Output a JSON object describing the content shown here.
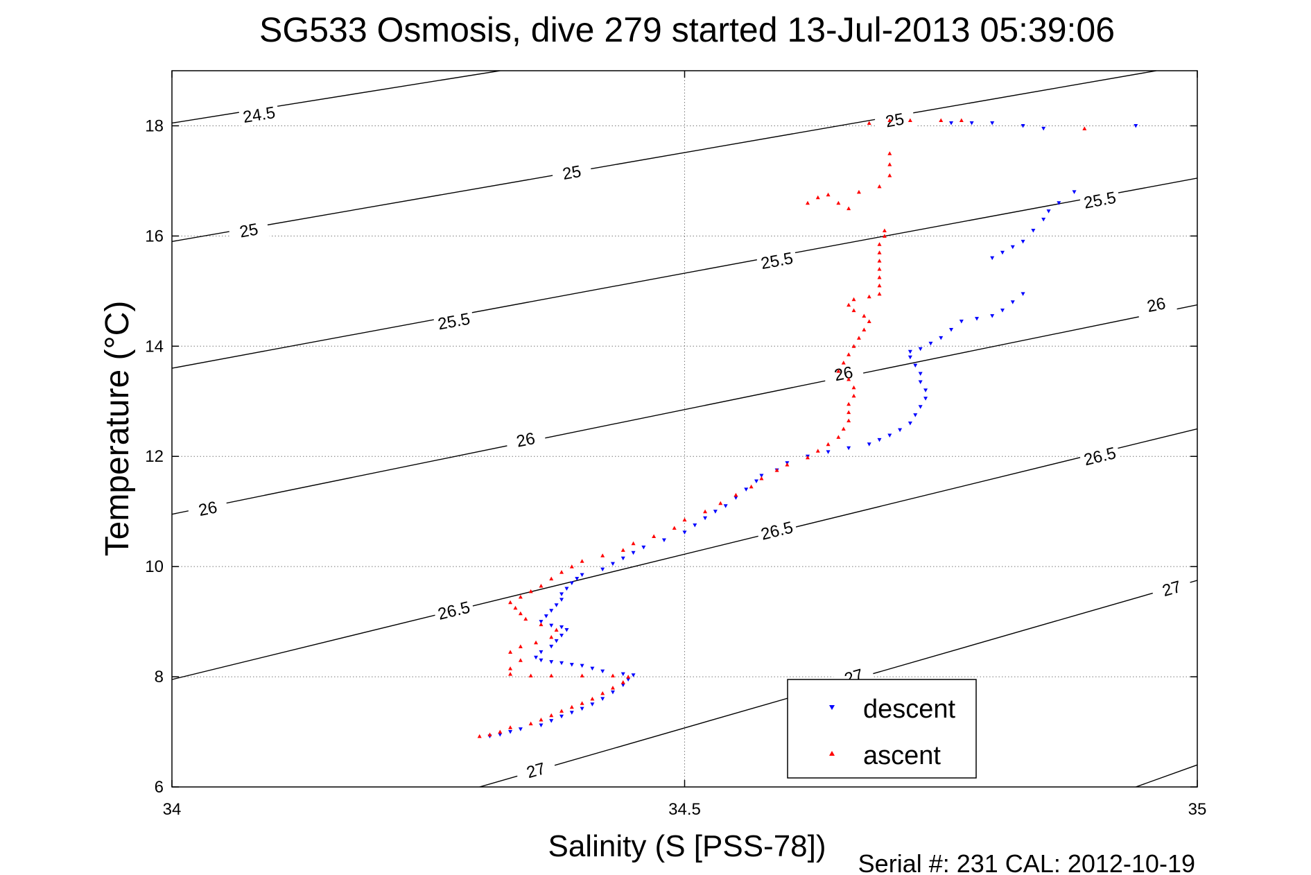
{
  "chart_data": {
    "type": "scatter",
    "title": "SG533 Osmosis, dive 279 started 13-Jul-2013 05:39:06",
    "xlabel": "Salinity (S [PSS-78])",
    "ylabel": "Temperature (°C)",
    "footer": "Serial #: 231  CAL: 2012-10-19",
    "xlim": [
      34,
      35
    ],
    "ylim": [
      6,
      19
    ],
    "xticks": [
      34,
      34.5,
      35
    ],
    "xtick_labels": [
      "34",
      "34.5",
      "35"
    ],
    "yticks": [
      6,
      8,
      10,
      12,
      14,
      16,
      18
    ],
    "ytick_labels": [
      "6",
      "8",
      "10",
      "12",
      "14",
      "16",
      "18"
    ],
    "grid": true,
    "legend": {
      "placement": "bottom-right",
      "entries": [
        "descent",
        "ascent"
      ]
    },
    "contours": [
      {
        "label": "24.5",
        "x0": 34,
        "y0": 18.05,
        "x1": 34.32,
        "y1": 19.0,
        "labels_at": [
          [
            34.085,
            18.2
          ]
        ]
      },
      {
        "label": "25",
        "x0": 34,
        "y0": 15.9,
        "x1": 34.96,
        "y1": 19.0,
        "labels_at": [
          [
            34.075,
            16.1
          ],
          [
            34.39,
            17.15
          ],
          [
            34.705,
            18.1
          ]
        ]
      },
      {
        "label": "25.5",
        "x0": 34,
        "y0": 13.6,
        "x1": 35.0,
        "y1": 17.05,
        "labels_at": [
          [
            34.275,
            14.45
          ],
          [
            34.59,
            15.55
          ],
          [
            34.905,
            16.65
          ]
        ]
      },
      {
        "label": "26",
        "x0": 34,
        "y0": 10.95,
        "x1": 35.0,
        "y1": 14.75,
        "labels_at": [
          [
            34.035,
            11.05
          ],
          [
            34.345,
            12.3
          ],
          [
            34.655,
            13.5
          ],
          [
            34.96,
            14.75
          ]
        ]
      },
      {
        "label": "26.5",
        "x0": 34,
        "y0": 7.95,
        "x1": 35.0,
        "y1": 12.5,
        "labels_at": [
          [
            34.275,
            9.2
          ],
          [
            34.59,
            10.65
          ],
          [
            34.905,
            12.0
          ]
        ]
      },
      {
        "label": "27",
        "x0": 34.3,
        "y0": 6.0,
        "x1": 35.0,
        "y1": 9.75,
        "labels_at": [
          [
            34.355,
            6.3
          ],
          [
            34.665,
            8.0
          ],
          [
            34.975,
            9.6
          ]
        ]
      },
      {
        "label": "",
        "x0": 34.94,
        "y0": 6.0,
        "x1": 35.0,
        "y1": 6.4,
        "labels_at": []
      }
    ],
    "series": [
      {
        "name": "descent",
        "color": "#0000ff",
        "marker": "triangle-down",
        "points": [
          [
            34.31,
            6.92
          ],
          [
            34.32,
            6.95
          ],
          [
            34.33,
            7.0
          ],
          [
            34.34,
            7.05
          ],
          [
            34.36,
            7.12
          ],
          [
            34.37,
            7.2
          ],
          [
            34.38,
            7.28
          ],
          [
            34.39,
            7.35
          ],
          [
            34.4,
            7.42
          ],
          [
            34.41,
            7.5
          ],
          [
            34.42,
            7.6
          ],
          [
            34.43,
            7.72
          ],
          [
            34.44,
            7.85
          ],
          [
            34.445,
            7.95
          ],
          [
            34.45,
            8.03
          ],
          [
            34.44,
            8.05
          ],
          [
            34.42,
            8.1
          ],
          [
            34.41,
            8.15
          ],
          [
            34.4,
            8.2
          ],
          [
            34.39,
            8.22
          ],
          [
            34.38,
            8.25
          ],
          [
            34.37,
            8.27
          ],
          [
            34.36,
            8.3
          ],
          [
            34.355,
            8.35
          ],
          [
            34.36,
            8.45
          ],
          [
            34.37,
            8.55
          ],
          [
            34.375,
            8.65
          ],
          [
            34.38,
            8.75
          ],
          [
            34.385,
            8.85
          ],
          [
            34.38,
            8.9
          ],
          [
            34.37,
            8.93
          ],
          [
            34.36,
            9.0
          ],
          [
            34.365,
            9.1
          ],
          [
            34.37,
            9.2
          ],
          [
            34.375,
            9.3
          ],
          [
            34.38,
            9.4
          ],
          [
            34.38,
            9.5
          ],
          [
            34.385,
            9.6
          ],
          [
            34.39,
            9.7
          ],
          [
            34.395,
            9.78
          ],
          [
            34.4,
            9.85
          ],
          [
            34.42,
            9.95
          ],
          [
            34.43,
            10.05
          ],
          [
            34.44,
            10.15
          ],
          [
            34.45,
            10.25
          ],
          [
            34.46,
            10.35
          ],
          [
            34.48,
            10.48
          ],
          [
            34.5,
            10.62
          ],
          [
            34.51,
            10.75
          ],
          [
            34.52,
            10.88
          ],
          [
            34.53,
            11.0
          ],
          [
            34.54,
            11.1
          ],
          [
            34.55,
            11.25
          ],
          [
            34.56,
            11.4
          ],
          [
            34.57,
            11.55
          ],
          [
            34.575,
            11.65
          ],
          [
            34.59,
            11.75
          ],
          [
            34.6,
            11.88
          ],
          [
            34.62,
            12.0
          ],
          [
            34.64,
            12.08
          ],
          [
            34.66,
            12.15
          ],
          [
            34.68,
            12.22
          ],
          [
            34.69,
            12.3
          ],
          [
            34.7,
            12.38
          ],
          [
            34.71,
            12.48
          ],
          [
            34.72,
            12.6
          ],
          [
            34.725,
            12.75
          ],
          [
            34.73,
            12.9
          ],
          [
            34.735,
            13.05
          ],
          [
            34.735,
            13.2
          ],
          [
            34.73,
            13.35
          ],
          [
            34.73,
            13.5
          ],
          [
            34.725,
            13.65
          ],
          [
            34.72,
            13.8
          ],
          [
            34.72,
            13.9
          ],
          [
            34.73,
            13.95
          ],
          [
            34.74,
            14.05
          ],
          [
            34.75,
            14.15
          ],
          [
            34.76,
            14.3
          ],
          [
            34.77,
            14.45
          ],
          [
            34.785,
            14.5
          ],
          [
            34.8,
            14.55
          ],
          [
            34.81,
            14.65
          ],
          [
            34.82,
            14.8
          ],
          [
            34.83,
            14.95
          ],
          [
            34.8,
            15.6
          ],
          [
            34.81,
            15.7
          ],
          [
            34.82,
            15.8
          ],
          [
            34.83,
            15.9
          ],
          [
            34.84,
            16.1
          ],
          [
            34.85,
            16.3
          ],
          [
            34.855,
            16.45
          ],
          [
            34.865,
            16.6
          ],
          [
            34.88,
            16.8
          ],
          [
            34.85,
            17.95
          ],
          [
            34.83,
            18.0
          ],
          [
            34.8,
            18.05
          ],
          [
            34.78,
            18.05
          ],
          [
            34.76,
            18.05
          ],
          [
            34.94,
            18.0
          ]
        ]
      },
      {
        "name": "ascent",
        "color": "#ff0000",
        "marker": "triangle-up",
        "points": [
          [
            34.3,
            6.92
          ],
          [
            34.31,
            6.95
          ],
          [
            34.32,
            7.0
          ],
          [
            34.33,
            7.08
          ],
          [
            34.35,
            7.15
          ],
          [
            34.36,
            7.22
          ],
          [
            34.37,
            7.3
          ],
          [
            34.38,
            7.38
          ],
          [
            34.39,
            7.45
          ],
          [
            34.4,
            7.52
          ],
          [
            34.41,
            7.6
          ],
          [
            34.42,
            7.7
          ],
          [
            34.43,
            7.8
          ],
          [
            34.44,
            7.9
          ],
          [
            34.445,
            8.0
          ],
          [
            34.43,
            8.02
          ],
          [
            34.4,
            8.02
          ],
          [
            34.37,
            8.02
          ],
          [
            34.35,
            8.02
          ],
          [
            34.33,
            8.05
          ],
          [
            34.33,
            8.15
          ],
          [
            34.34,
            8.3
          ],
          [
            34.33,
            8.45
          ],
          [
            34.34,
            8.55
          ],
          [
            34.355,
            8.62
          ],
          [
            34.37,
            8.72
          ],
          [
            34.375,
            8.85
          ],
          [
            34.36,
            8.95
          ],
          [
            34.345,
            9.05
          ],
          [
            34.34,
            9.15
          ],
          [
            34.335,
            9.25
          ],
          [
            34.33,
            9.35
          ],
          [
            34.34,
            9.45
          ],
          [
            34.35,
            9.55
          ],
          [
            34.36,
            9.65
          ],
          [
            34.37,
            9.78
          ],
          [
            34.38,
            9.9
          ],
          [
            34.39,
            10.0
          ],
          [
            34.4,
            10.1
          ],
          [
            34.42,
            10.2
          ],
          [
            34.44,
            10.3
          ],
          [
            34.45,
            10.42
          ],
          [
            34.47,
            10.55
          ],
          [
            34.49,
            10.7
          ],
          [
            34.5,
            10.85
          ],
          [
            34.52,
            11.0
          ],
          [
            34.535,
            11.15
          ],
          [
            34.55,
            11.3
          ],
          [
            34.565,
            11.45
          ],
          [
            34.575,
            11.6
          ],
          [
            34.59,
            11.75
          ],
          [
            34.6,
            11.85
          ],
          [
            34.62,
            11.98
          ],
          [
            34.63,
            12.1
          ],
          [
            34.64,
            12.22
          ],
          [
            34.65,
            12.35
          ],
          [
            34.655,
            12.5
          ],
          [
            34.66,
            12.65
          ],
          [
            34.66,
            12.8
          ],
          [
            34.66,
            12.95
          ],
          [
            34.665,
            13.1
          ],
          [
            34.665,
            13.25
          ],
          [
            34.66,
            13.4
          ],
          [
            34.65,
            13.55
          ],
          [
            34.655,
            13.7
          ],
          [
            34.66,
            13.85
          ],
          [
            34.665,
            14.0
          ],
          [
            34.67,
            14.15
          ],
          [
            34.675,
            14.3
          ],
          [
            34.68,
            14.45
          ],
          [
            34.675,
            14.55
          ],
          [
            34.665,
            14.65
          ],
          [
            34.66,
            14.75
          ],
          [
            34.665,
            14.85
          ],
          [
            34.68,
            14.9
          ],
          [
            34.69,
            14.95
          ],
          [
            34.69,
            15.1
          ],
          [
            34.69,
            15.25
          ],
          [
            34.69,
            15.4
          ],
          [
            34.69,
            15.55
          ],
          [
            34.69,
            15.7
          ],
          [
            34.69,
            15.85
          ],
          [
            34.695,
            16.0
          ],
          [
            34.695,
            16.1
          ],
          [
            34.66,
            16.5
          ],
          [
            34.65,
            16.6
          ],
          [
            34.63,
            16.7
          ],
          [
            34.62,
            16.6
          ],
          [
            34.64,
            16.75
          ],
          [
            34.67,
            16.8
          ],
          [
            34.69,
            16.9
          ],
          [
            34.7,
            17.1
          ],
          [
            34.7,
            17.3
          ],
          [
            34.7,
            17.5
          ],
          [
            34.68,
            18.05
          ],
          [
            34.7,
            18.1
          ],
          [
            34.72,
            18.1
          ],
          [
            34.75,
            18.1
          ],
          [
            34.77,
            18.1
          ],
          [
            34.89,
            17.95
          ]
        ]
      }
    ]
  }
}
